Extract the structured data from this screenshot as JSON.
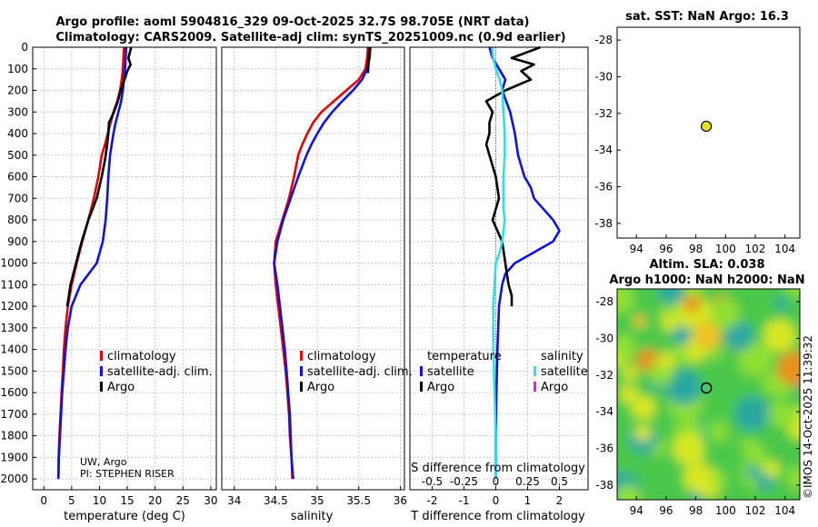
{
  "header": {
    "title_line1": "Argo profile: aoml 5904816_329 09-Oct-2025 32.7S 98.705E (NRT data)",
    "title_line2": "Climatology: CARS2009. Satellite-adj clim: synTS_20251009.nc (0.9d earlier)"
  },
  "chart_data": [
    {
      "id": "temperature",
      "type": "line",
      "xlabel": "temperature (deg C)",
      "xlim": [
        -2,
        31
      ],
      "xticks": [
        0,
        5,
        10,
        15,
        20,
        25,
        30
      ],
      "ylim": [
        0,
        2050
      ],
      "yticks": [
        0,
        100,
        200,
        300,
        400,
        500,
        600,
        700,
        800,
        900,
        1000,
        1100,
        1200,
        1300,
        1400,
        1500,
        1600,
        1700,
        1800,
        1900,
        2000
      ],
      "legend": [
        "climatology",
        "satellite-adj. clim.",
        "Argo"
      ],
      "annotation_line1": "UW, Argo",
      "annotation_line2": "PI: STEPHEN RISER",
      "series": [
        {
          "name": "climatology",
          "color": "#e00000",
          "x": [
            14.4,
            14.3,
            14.2,
            14.0,
            13.7,
            13.2,
            12.5,
            12.0,
            11.5,
            11.0,
            10.4,
            9.8,
            9.0,
            8.0,
            6.9,
            5.9,
            5.0,
            4.3,
            3.9,
            3.6,
            3.4,
            3.2,
            3.0,
            2.8,
            2.65,
            2.6
          ],
          "y": [
            0,
            50,
            100,
            150,
            200,
            250,
            300,
            350,
            400,
            450,
            500,
            600,
            700,
            800,
            900,
            1000,
            1100,
            1200,
            1300,
            1400,
            1500,
            1600,
            1700,
            1800,
            1900,
            2000
          ]
        },
        {
          "name": "satellite-adj. clim.",
          "color": "#1010e0",
          "x": [
            14.8,
            14.7,
            14.6,
            14.4,
            14.2,
            13.9,
            13.4,
            12.9,
            12.5,
            12.2,
            11.9,
            11.6,
            11.4,
            11.1,
            10.6,
            9.5,
            6.6,
            5.0,
            4.3,
            3.9,
            3.6,
            3.3,
            3.1,
            2.9,
            2.7,
            2.6
          ],
          "y": [
            0,
            50,
            100,
            150,
            200,
            250,
            300,
            350,
            400,
            450,
            500,
            600,
            700,
            800,
            900,
            1000,
            1100,
            1200,
            1300,
            1400,
            1500,
            1600,
            1700,
            1800,
            1900,
            2000
          ]
        },
        {
          "name": "Argo",
          "color": "#000000",
          "x": [
            15.7,
            15.2,
            15.6,
            15.0,
            14.5,
            13.8,
            13.3,
            12.6,
            11.7,
            11.6,
            11.4,
            11.0,
            10.4,
            9.5,
            8.0,
            6.8,
            5.8,
            4.8,
            4.2
          ],
          "y": [
            0,
            50,
            80,
            110,
            150,
            200,
            250,
            300,
            350,
            400,
            450,
            520,
            600,
            700,
            800,
            900,
            1000,
            1100,
            1200
          ]
        }
      ]
    },
    {
      "id": "salinity",
      "type": "line",
      "xlabel": "salinity",
      "xlim": [
        33.85,
        36.05
      ],
      "xticks": [
        34,
        34.5,
        35,
        35.5,
        36
      ],
      "ylim": [
        0,
        2050
      ],
      "legend": [
        "climatology",
        "satellite-adj. clim.",
        "Argo"
      ],
      "series": [
        {
          "name": "climatology",
          "color": "#e00000",
          "x": [
            35.61,
            35.6,
            35.58,
            35.5,
            35.35,
            35.2,
            35.05,
            34.95,
            34.88,
            34.82,
            34.77,
            34.72,
            34.66,
            34.58,
            34.5,
            34.48,
            34.5,
            34.53,
            34.56,
            34.59,
            34.62,
            34.64,
            34.66,
            34.67,
            34.69,
            34.7
          ],
          "y": [
            0,
            50,
            100,
            150,
            200,
            250,
            300,
            350,
            400,
            450,
            500,
            600,
            700,
            800,
            900,
            1000,
            1100,
            1200,
            1300,
            1400,
            1500,
            1600,
            1700,
            1800,
            1900,
            2000
          ]
        },
        {
          "name": "satellite-adj. clim.",
          "color": "#1010e0",
          "x": [
            35.64,
            35.63,
            35.6,
            35.54,
            35.43,
            35.3,
            35.18,
            35.08,
            35.0,
            34.93,
            34.87,
            34.77,
            34.68,
            34.59,
            34.52,
            34.48,
            34.52,
            34.55,
            34.58,
            34.61,
            34.63,
            34.65,
            34.67,
            34.68,
            34.69,
            34.71
          ],
          "y": [
            0,
            50,
            100,
            150,
            200,
            250,
            300,
            350,
            400,
            450,
            500,
            600,
            700,
            800,
            900,
            1000,
            1100,
            1200,
            1300,
            1400,
            1500,
            1600,
            1700,
            1800,
            1900,
            2000
          ]
        },
        {
          "name": "Argo",
          "color": "#000000",
          "x": [
            35.63,
            35.62,
            35.61
          ],
          "y": [
            0,
            60,
            120
          ]
        }
      ]
    },
    {
      "id": "difference",
      "type": "line",
      "xlabel": "T difference from climatology",
      "top_xlabel": "S difference from climatology",
      "xlim": [
        -2.7,
        2.9
      ],
      "xticks": [
        -2,
        -1,
        0,
        1,
        2
      ],
      "s_ticks": [
        -0.5,
        -0.25,
        0,
        0.25,
        0.5
      ],
      "s_tick_labels": [
        "-0.5",
        "-0.25",
        "0",
        "0.25",
        "0.5"
      ],
      "ylim": [
        0,
        2050
      ],
      "legend_temperature_title": "temperature",
      "legend_salinity_title": "salinity",
      "legend_temperature": [
        "satellite",
        "Argo"
      ],
      "legend_salinity": [
        "satellite",
        "Argo"
      ],
      "series": [
        {
          "name": "T satellite",
          "color": "#1010e0",
          "x": [
            -0.2,
            -0.1,
            0.1,
            0.3,
            0.2,
            0.45,
            0.6,
            0.7,
            0.9,
            1.1,
            1.2,
            1.5,
            1.8,
            2.0,
            1.8,
            1.2,
            0.6,
            0.3,
            0.2,
            0.1,
            0.05,
            0.02,
            0.0,
            0.0,
            0.0
          ],
          "y": [
            0,
            50,
            100,
            150,
            200,
            300,
            400,
            500,
            600,
            650,
            700,
            750,
            800,
            850,
            900,
            950,
            1000,
            1050,
            1100,
            1200,
            1400,
            1600,
            1800,
            1900,
            2000
          ]
        },
        {
          "name": "T Argo",
          "color": "#000000",
          "x": [
            1.4,
            0.5,
            1.2,
            0.8,
            1.1,
            0.3,
            -0.3,
            -0.1,
            -0.2,
            -0.2,
            -0.3,
            -0.2,
            0.0,
            0.1,
            -0.1,
            0.2,
            0.3,
            0.4,
            0.5,
            0.5
          ],
          "y": [
            0,
            50,
            80,
            110,
            150,
            200,
            250,
            300,
            350,
            400,
            450,
            500,
            600,
            700,
            800,
            900,
            1000,
            1100,
            1150,
            1200
          ]
        },
        {
          "name": "S satellite",
          "color": "#30e0e8",
          "x": [
            -0.03,
            -0.02,
            0.0,
            0.03,
            0.05,
            0.06,
            0.07,
            0.07,
            0.06,
            0.06,
            0.06,
            0.07,
            0.06,
            0.05,
            0.03,
            0.0,
            -0.01,
            -0.02,
            -0.02,
            -0.01,
            0.0,
            0.0,
            0.0
          ],
          "y": [
            0,
            50,
            100,
            150,
            200,
            300,
            400,
            500,
            600,
            700,
            750,
            800,
            850,
            900,
            950,
            1000,
            1100,
            1200,
            1400,
            1600,
            1800,
            1900,
            2000
          ]
        },
        {
          "name": "S Argo",
          "color": "#e020e0",
          "x": [],
          "y": []
        }
      ]
    },
    {
      "id": "sst-map",
      "type": "scatter",
      "title": "sat. SST: NaN Argo: 16.3",
      "xlim": [
        92.7,
        105
      ],
      "xticks": [
        94,
        96,
        98,
        100,
        102,
        104
      ],
      "ylim": [
        -38.8,
        -27.3
      ],
      "yticks": [
        -28,
        -30,
        -32,
        -34,
        -36,
        -38
      ],
      "points": [
        {
          "x": 98.705,
          "y": -32.7,
          "color": "#e8e020"
        }
      ]
    },
    {
      "id": "sla-map",
      "type": "heatmap",
      "title_line1": "Altim. SLA: 0.038",
      "title_line2": "Argo h1000: NaN h2000: NaN",
      "xlim": [
        92.7,
        105
      ],
      "xticks": [
        94,
        96,
        98,
        100,
        102,
        104
      ],
      "ylim": [
        -38.8,
        -27.3
      ],
      "yticks": [
        -28,
        -30,
        -32,
        -34,
        -36,
        -38
      ],
      "points": [
        {
          "x": 98.705,
          "y": -32.7
        }
      ],
      "colors": [
        "#2aa8a0",
        "#4cc84c",
        "#90e030",
        "#d8e820",
        "#f0c020",
        "#e8901c"
      ]
    }
  ],
  "watermark": "©IMOS 14-Oct-2025 11:39:32"
}
